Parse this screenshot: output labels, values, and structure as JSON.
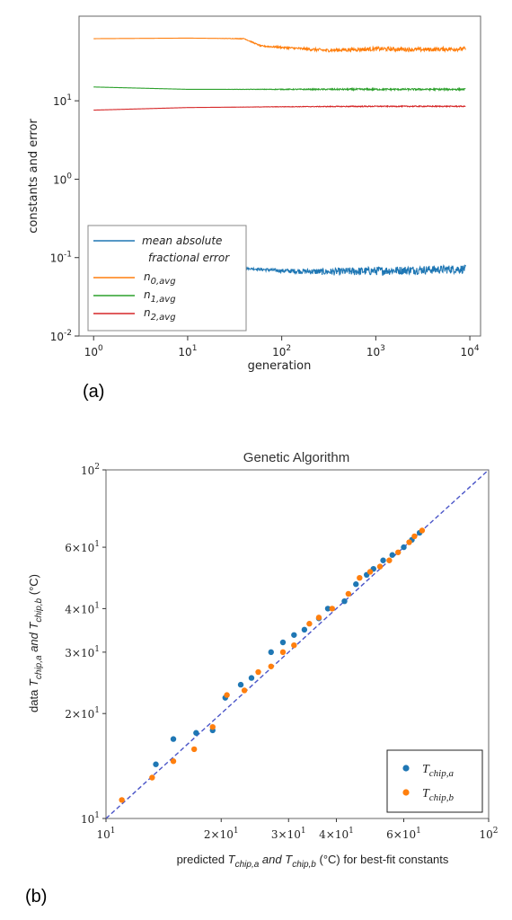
{
  "panels": {
    "a_label": "(a)",
    "b_label": "(b)"
  },
  "chart_data": [
    {
      "type": "line",
      "xscale": "log",
      "yscale": "log",
      "xlim": [
        0.7,
        13000
      ],
      "ylim": [
        0.01,
        120
      ],
      "xlabel": "generation",
      "ylabel": "constants and error",
      "xticks": [
        "10^0",
        "10^1",
        "10^2",
        "10^3",
        "10^4"
      ],
      "yticks": [
        "10^-2",
        "10^-1",
        "10^0",
        "10^1"
      ],
      "legend_position": "lower-left",
      "series": [
        {
          "name": "mean absolute fractional error",
          "color": "#1f77b4",
          "x": [
            1,
            10,
            30,
            100,
            300,
            1000,
            3000,
            9000
          ],
          "y": [
            0.12,
            0.085,
            0.075,
            0.068,
            0.066,
            0.068,
            0.07,
            0.072
          ],
          "noise": 0.25
        },
        {
          "name": "n_{0,avg}",
          "color": "#ff7f0e",
          "x": [
            1,
            10,
            40,
            60,
            100,
            300,
            1000,
            3000,
            9000
          ],
          "y": [
            62,
            63,
            62,
            50,
            48,
            44,
            46,
            45,
            46
          ],
          "noise": 0.12
        },
        {
          "name": "n_{1,avg}",
          "color": "#2ca02c",
          "x": [
            1,
            10,
            100,
            1000,
            9000
          ],
          "y": [
            15,
            14,
            14,
            14,
            14
          ],
          "noise": 0.05
        },
        {
          "name": "n_{2,avg}",
          "color": "#d62728",
          "x": [
            1,
            10,
            100,
            1000,
            9000
          ],
          "y": [
            7.6,
            8.2,
            8.4,
            8.5,
            8.5
          ],
          "noise": 0.03
        }
      ]
    },
    {
      "type": "scatter",
      "title": "Genetic Algorithm",
      "xscale": "log",
      "yscale": "log",
      "xlim": [
        10,
        100
      ],
      "ylim": [
        10,
        100
      ],
      "xlabel": "predicted T_{chip,a} and T_{chip,b} (°C) for best-fit constants",
      "ylabel": "data T_{chip,a} and T_{chip,b} (°C)",
      "xticks": [
        "10^1",
        "2×10^1",
        "3×10^1",
        "4×10^1",
        "6×10^1",
        "10^2"
      ],
      "yticks": [
        "10^1",
        "2×10^1",
        "3×10^1",
        "4×10^1",
        "6×10^1",
        "10^2"
      ],
      "reference_line": "y = x (dashed)",
      "legend_position": "lower-right",
      "series": [
        {
          "name": "T_{chip,a}",
          "color": "#1f77b4",
          "points": [
            [
              13.5,
              14.3
            ],
            [
              15,
              16.9
            ],
            [
              17.2,
              17.6
            ],
            [
              19,
              17.9
            ],
            [
              20.5,
              22.2
            ],
            [
              22.5,
              24.2
            ],
            [
              24,
              25.3
            ],
            [
              27,
              30
            ],
            [
              29,
              32
            ],
            [
              31,
              33.6
            ],
            [
              33,
              34.8
            ],
            [
              36,
              37.5
            ],
            [
              38,
              40
            ],
            [
              42,
              42
            ],
            [
              45,
              47
            ],
            [
              48,
              50
            ],
            [
              50,
              52
            ],
            [
              53,
              55
            ],
            [
              56,
              57
            ],
            [
              60,
              60
            ],
            [
              63,
              63
            ],
            [
              66,
              66
            ]
          ]
        },
        {
          "name": "T_{chip,b}",
          "color": "#ff7f0e",
          "points": [
            [
              11,
              11.3
            ],
            [
              13.2,
              13.1
            ],
            [
              15,
              14.6
            ],
            [
              17,
              15.8
            ],
            [
              19,
              18.3
            ],
            [
              20.7,
              22.6
            ],
            [
              23,
              23.3
            ],
            [
              25,
              26.3
            ],
            [
              27,
              27.3
            ],
            [
              29,
              30
            ],
            [
              31,
              31.4
            ],
            [
              34,
              36.2
            ],
            [
              36,
              37.7
            ],
            [
              39,
              40
            ],
            [
              43,
              44.1
            ],
            [
              46,
              49
            ],
            [
              49,
              51
            ],
            [
              52,
              52.8
            ],
            [
              55,
              55
            ],
            [
              58,
              58
            ],
            [
              62,
              62
            ],
            [
              64,
              64.5
            ],
            [
              67,
              67
            ]
          ]
        }
      ]
    }
  ]
}
